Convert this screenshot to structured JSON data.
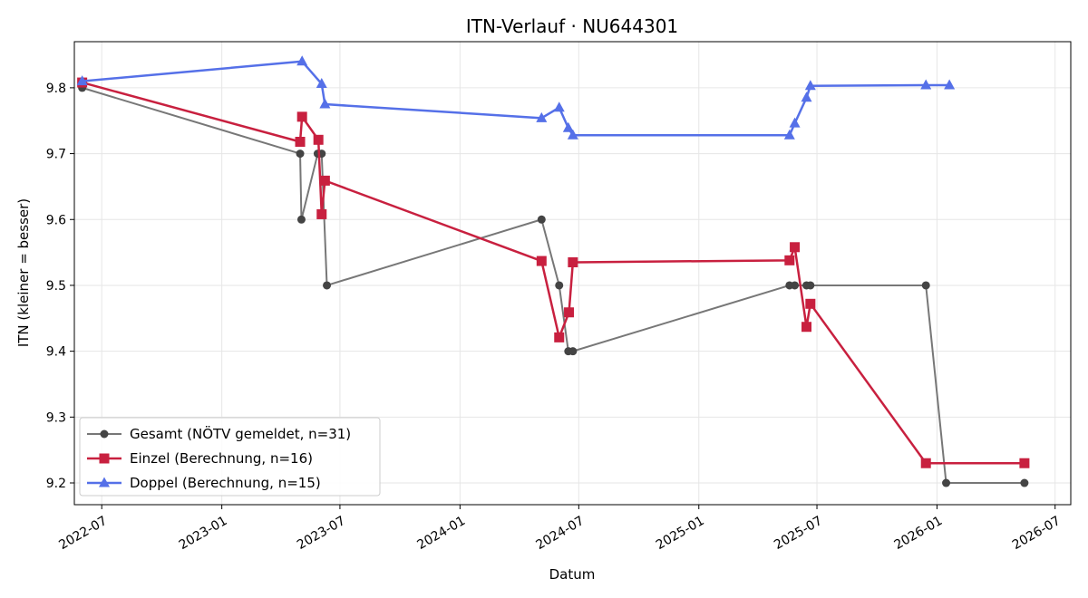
{
  "chart_data": {
    "type": "line",
    "title": "ITN-Verlauf · NU644301",
    "xlabel": "Datum",
    "ylabel": "ITN  (kleiner = besser)",
    "xlim": [
      "2022-05-20",
      "2026-07-25"
    ],
    "ylim": [
      9.167,
      9.87
    ],
    "x_ticks": [
      "2022-07-01",
      "2023-01-01",
      "2023-07-01",
      "2024-01-01",
      "2024-07-01",
      "2025-01-01",
      "2025-07-01",
      "2026-01-01",
      "2026-07-01"
    ],
    "x_tick_labels": [
      "2022-07",
      "2023-01",
      "2023-07",
      "2024-01",
      "2024-07",
      "2025-01",
      "2025-07",
      "2026-01",
      "2026-07"
    ],
    "y_ticks": [
      9.2,
      9.3,
      9.4,
      9.5,
      9.6,
      9.7,
      9.8
    ],
    "y_tick_labels": [
      "9.2",
      "9.3",
      "9.4",
      "9.5",
      "9.6",
      "9.7",
      "9.8"
    ],
    "grid": true,
    "legend_position": "bottom-left",
    "series": [
      {
        "name": "Gesamt (NÖTV gemeldet, n=31)",
        "color": "#777777",
        "marker_color": "#444444",
        "marker": "circle",
        "points": [
          [
            "2022-06-01",
            9.8
          ],
          [
            "2023-05-01",
            9.7
          ],
          [
            "2023-05-03",
            9.6
          ],
          [
            "2023-05-28",
            9.7
          ],
          [
            "2023-06-03",
            9.7
          ],
          [
            "2023-06-11",
            9.5
          ],
          [
            "2024-05-05",
            9.6
          ],
          [
            "2024-06-01",
            9.5
          ],
          [
            "2024-06-15",
            9.4
          ],
          [
            "2024-06-22",
            9.4
          ],
          [
            "2025-05-20",
            9.5
          ],
          [
            "2025-05-28",
            9.5
          ],
          [
            "2025-06-15",
            9.5
          ],
          [
            "2025-06-21",
            9.5
          ],
          [
            "2025-12-15",
            9.5
          ],
          [
            "2026-01-15",
            9.2
          ],
          [
            "2026-05-15",
            9.2
          ]
        ]
      },
      {
        "name": "Einzel (Berechnung, n=16)",
        "color": "#c8203f",
        "marker_color": "#c8203f",
        "marker": "square",
        "points": [
          [
            "2022-06-01",
            9.808
          ],
          [
            "2023-05-01",
            9.718
          ],
          [
            "2023-05-04",
            9.756
          ],
          [
            "2023-05-29",
            9.721
          ],
          [
            "2023-06-03",
            9.608
          ],
          [
            "2023-06-08",
            9.659
          ],
          [
            "2024-05-05",
            9.537
          ],
          [
            "2024-06-01",
            9.421
          ],
          [
            "2024-06-16",
            9.459
          ],
          [
            "2024-06-22",
            9.535
          ],
          [
            "2025-05-20",
            9.538
          ],
          [
            "2025-05-28",
            9.558
          ],
          [
            "2025-06-15",
            9.437
          ],
          [
            "2025-06-21",
            9.472
          ],
          [
            "2025-12-15",
            9.23
          ],
          [
            "2026-05-15",
            9.23
          ]
        ]
      },
      {
        "name": "Doppel (Berechnung, n=15)",
        "color": "#5570e8",
        "marker_color": "#5570e8",
        "marker": "triangle",
        "points": [
          [
            "2022-06-01",
            9.81
          ],
          [
            "2023-05-04",
            9.84
          ],
          [
            "2023-06-03",
            9.806
          ],
          [
            "2023-06-08",
            9.775
          ],
          [
            "2024-05-05",
            9.754
          ],
          [
            "2024-06-01",
            9.77
          ],
          [
            "2024-06-15",
            9.739
          ],
          [
            "2024-06-22",
            9.728
          ],
          [
            "2025-05-20",
            9.728
          ],
          [
            "2025-05-28",
            9.746
          ],
          [
            "2025-06-15",
            9.785
          ],
          [
            "2025-06-21",
            9.803
          ],
          [
            "2025-12-15",
            9.804
          ],
          [
            "2026-01-20",
            9.804
          ]
        ]
      }
    ]
  }
}
